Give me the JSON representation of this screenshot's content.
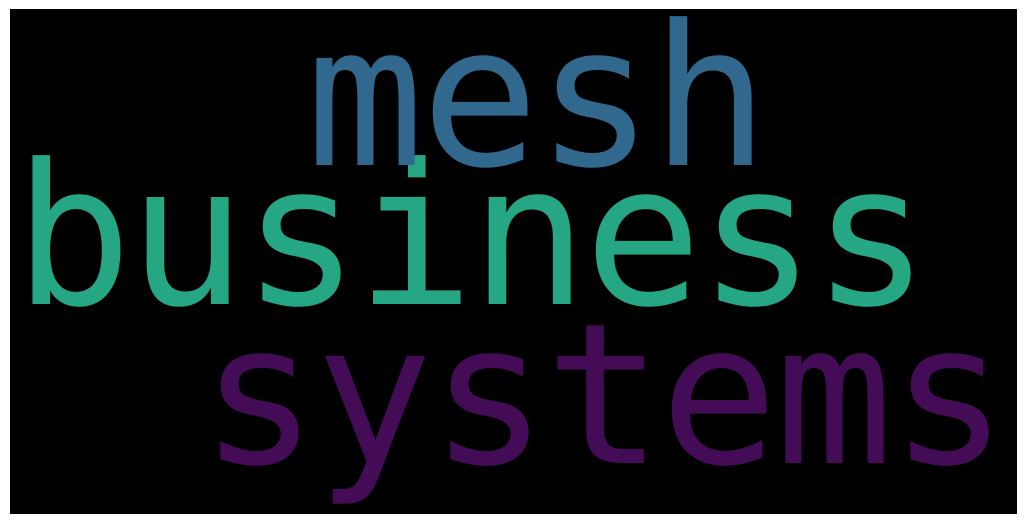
{
  "word_cloud": {
    "background": "#000000",
    "words": [
      {
        "text": "mesh",
        "color": "#31688e"
      },
      {
        "text": "business",
        "color": "#26a784"
      },
      {
        "text": "systems",
        "color": "#440b57"
      }
    ]
  }
}
